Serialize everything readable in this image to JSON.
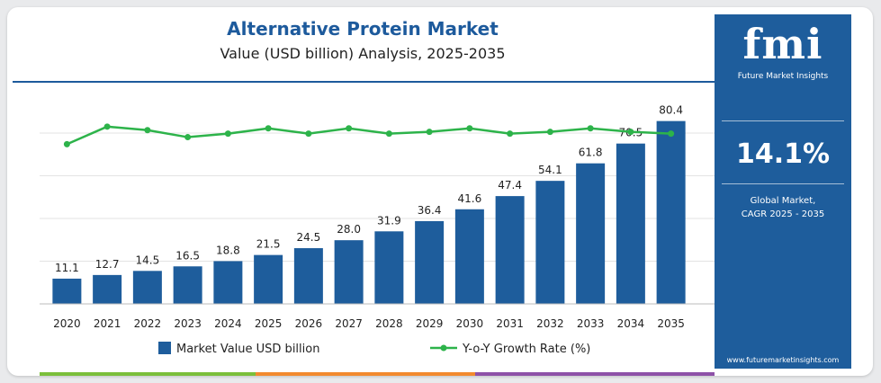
{
  "header": {
    "title": "Alternative Protein Market",
    "subtitle": "Value (USD billion) Analysis, 2025-2035"
  },
  "sidebar": {
    "logo": "fmi",
    "logo_tagline": "Future Market Insights",
    "cagr_value": "14.1%",
    "cagr_label_line1": "Global Market,",
    "cagr_label_line2": "CAGR 2025 - 2035",
    "website": "www.futuremarketinsights.com"
  },
  "colors": {
    "bar": "#1e5d9c",
    "line": "#2db34a",
    "title": "#1d5a9c",
    "sidebar": "#1e5d9c",
    "strip": [
      "#7bbf3a",
      "#f28a2e",
      "#8e52a8"
    ]
  },
  "chart_data": {
    "type": "bar",
    "categories": [
      "2020",
      "2021",
      "2022",
      "2023",
      "2024",
      "2025",
      "2026",
      "2027",
      "2028",
      "2029",
      "2030",
      "2031",
      "2032",
      "2033",
      "2034",
      "2035"
    ],
    "series": [
      {
        "name": "Market Value USD billion",
        "type": "bar",
        "values": [
          11.1,
          12.7,
          14.5,
          16.5,
          18.8,
          21.5,
          24.5,
          28.0,
          31.9,
          36.4,
          41.6,
          47.4,
          54.1,
          61.8,
          70.5,
          80.4
        ]
      },
      {
        "name": "Y-o-Y Growth Rate (%)",
        "type": "line",
        "values": [
          13.4,
          14.4,
          14.2,
          13.8,
          14.0,
          14.3,
          14.0,
          14.3,
          14.0,
          14.1,
          14.3,
          14.0,
          14.1,
          14.3,
          14.1,
          14.0
        ]
      }
    ],
    "ylim": [
      0,
      85
    ],
    "grid": true,
    "legend_position": "bottom"
  }
}
